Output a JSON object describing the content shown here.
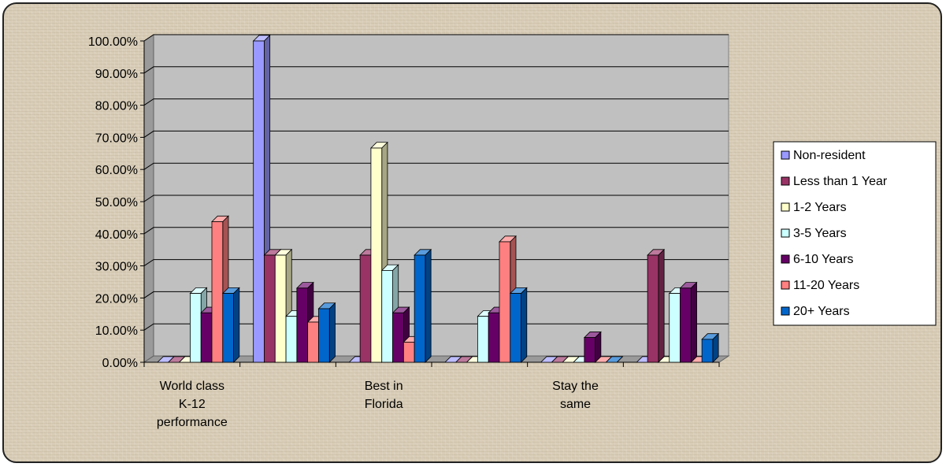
{
  "chart_data": {
    "type": "bar",
    "title": "",
    "xlabel": "",
    "ylabel": "",
    "ylim": [
      0,
      100
    ],
    "y_tick_format": "percent_2dp",
    "y_ticks": [
      "0.00%",
      "10.00%",
      "20.00%",
      "30.00%",
      "40.00%",
      "50.00%",
      "60.00%",
      "70.00%",
      "80.00%",
      "90.00%",
      "100.00%"
    ],
    "categories": [
      {
        "label": [
          "World class",
          "K-12",
          "performance"
        ]
      },
      {
        "label": []
      },
      {
        "label": [
          "Best in",
          "Florida"
        ]
      },
      {
        "label": []
      },
      {
        "label": [
          "Stay the",
          "same"
        ]
      },
      {
        "label": []
      }
    ],
    "series": [
      {
        "name": "Non-resident",
        "color": "#9999ff",
        "values": [
          0,
          100,
          0,
          0,
          0,
          0
        ]
      },
      {
        "name": "Less than 1 Year",
        "color": "#993366",
        "values": [
          0,
          33.33,
          33.33,
          0,
          0,
          33.33
        ]
      },
      {
        "name": "1-2 Years",
        "color": "#ffffcc",
        "values": [
          0,
          33.33,
          66.67,
          0,
          0,
          0
        ]
      },
      {
        "name": "3-5 Years",
        "color": "#ccffff",
        "values": [
          21.43,
          14.29,
          28.57,
          14.29,
          0,
          21.43
        ]
      },
      {
        "name": "6-10 Years",
        "color": "#660066",
        "values": [
          15.38,
          23.08,
          15.38,
          15.38,
          7.69,
          23.08
        ]
      },
      {
        "name": "11-20 Years",
        "color": "#ff8080",
        "values": [
          43.75,
          12.5,
          6.25,
          37.5,
          0,
          0
        ]
      },
      {
        "name": "20+ Years",
        "color": "#0066cc",
        "values": [
          21.43,
          16.67,
          33.33,
          21.43,
          0,
          7.14
        ]
      }
    ],
    "grid": true,
    "three_d": true,
    "plot_background": "#c0c0c0",
    "legend_position": "right"
  }
}
